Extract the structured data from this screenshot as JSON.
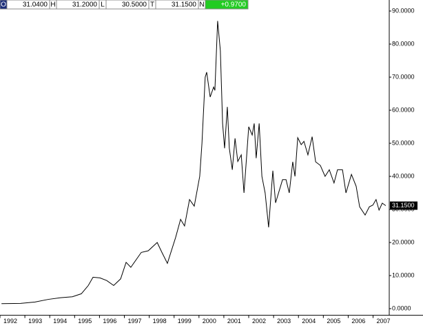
{
  "header": {
    "quotes": [
      {
        "label": "O",
        "value": "31.0400"
      },
      {
        "label": "H",
        "value": "31.2000"
      },
      {
        "label": "L",
        "value": "30.5000"
      },
      {
        "label": "T",
        "value": "31.1500"
      },
      {
        "label": "N",
        "value": "+0.9700"
      }
    ]
  },
  "chart_data": {
    "type": "line",
    "color": "#000000",
    "x": [
      1992.06,
      1992.83,
      1993.41,
      1993.94,
      1994.44,
      1994.91,
      1995.27,
      1995.55,
      1995.74,
      1996.02,
      1996.29,
      1996.57,
      1996.85,
      1997.07,
      1997.26,
      1997.68,
      1997.96,
      1998.32,
      1998.51,
      1998.73,
      1999.06,
      1999.26,
      1999.42,
      1999.62,
      1999.81,
      2000.03,
      2000.12,
      2000.25,
      2000.31,
      2000.45,
      2000.59,
      2000.64,
      2000.75,
      2000.86,
      2000.95,
      2001.03,
      2001.14,
      2001.22,
      2001.34,
      2001.45,
      2001.56,
      2001.7,
      2001.81,
      2001.92,
      2002.0,
      2002.14,
      2002.22,
      2002.3,
      2002.42,
      2002.53,
      2002.66,
      2002.8,
      2002.97,
      2003.08,
      2003.36,
      2003.5,
      2003.63,
      2003.77,
      2003.86,
      2003.97,
      2004.11,
      2004.22,
      2004.38,
      2004.55,
      2004.69,
      2004.88,
      2005.07,
      2005.24,
      2005.43,
      2005.57,
      2005.77,
      2005.91,
      2006.13,
      2006.32,
      2006.46,
      2006.68,
      2006.85,
      2006.99,
      2007.12,
      2007.24,
      2007.37,
      2007.51
    ],
    "series": [
      {
        "values": [
          1.5,
          1.6,
          2.0,
          2.8,
          3.3,
          3.6,
          4.5,
          7,
          9.5,
          9.3,
          8.5,
          7,
          9,
          14,
          12.5,
          17,
          17.5,
          20,
          17,
          13.7,
          21.5,
          27,
          25,
          33,
          31,
          40,
          50,
          70,
          71.5,
          64,
          67,
          66,
          87,
          78,
          56,
          48.5,
          61,
          48.5,
          42,
          51.5,
          44.5,
          46.5,
          35,
          46.5,
          55,
          52.5,
          56,
          45.5,
          56,
          40,
          35,
          24.6,
          41.7,
          32,
          39,
          39,
          35,
          44.4,
          40,
          51.7,
          49.6,
          50.6,
          46.5,
          52,
          44.4,
          43.3,
          40,
          42,
          38,
          42,
          42,
          35,
          40.6,
          37,
          30.8,
          28.3,
          30.8,
          31.3,
          33,
          29.8,
          31.9,
          31.15
        ]
      }
    ],
    "last_value_label": "31.1500",
    "xlim": [
      1992,
      2007.65
    ],
    "xticks": [
      1992,
      1993,
      1994,
      1995,
      1996,
      1997,
      1998,
      1999,
      2000,
      2001,
      2002,
      2003,
      2004,
      2005,
      2006,
      2007
    ],
    "ylim": [
      -2,
      92
    ],
    "yticks": [
      {
        "value": 0,
        "label": "0.0000"
      },
      {
        "value": 10,
        "label": "10.0000"
      },
      {
        "value": 20,
        "label": "20.0000"
      },
      {
        "value": 30,
        "label": "30.0000"
      },
      {
        "value": 40,
        "label": "40.0000"
      },
      {
        "value": 50,
        "label": "50.0000"
      },
      {
        "value": 60,
        "label": "60.0000"
      },
      {
        "value": 70,
        "label": "70.0000"
      },
      {
        "value": 80,
        "label": "80.0000"
      },
      {
        "value": 90,
        "label": "90.0000"
      }
    ]
  }
}
